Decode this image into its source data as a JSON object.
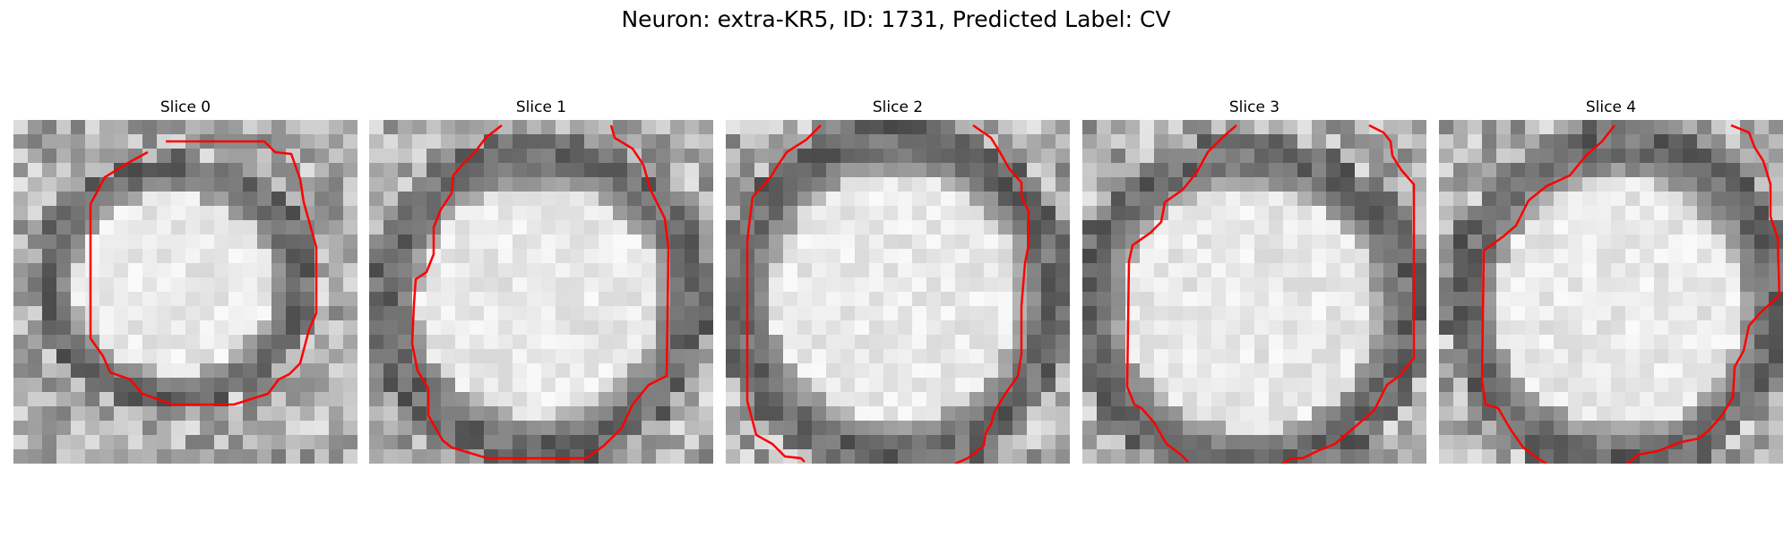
{
  "figure": {
    "title": "Neuron: extra-KR5, ID: 1731, Predicted Label: CV"
  },
  "panels": [
    {
      "title": "Slice 0"
    },
    {
      "title": "Slice 1"
    },
    {
      "title": "Slice 2"
    },
    {
      "title": "Slice 3"
    },
    {
      "title": "Slice 4"
    }
  ],
  "colors": {
    "contour": "#ff0000",
    "background": "#ffffff"
  }
}
